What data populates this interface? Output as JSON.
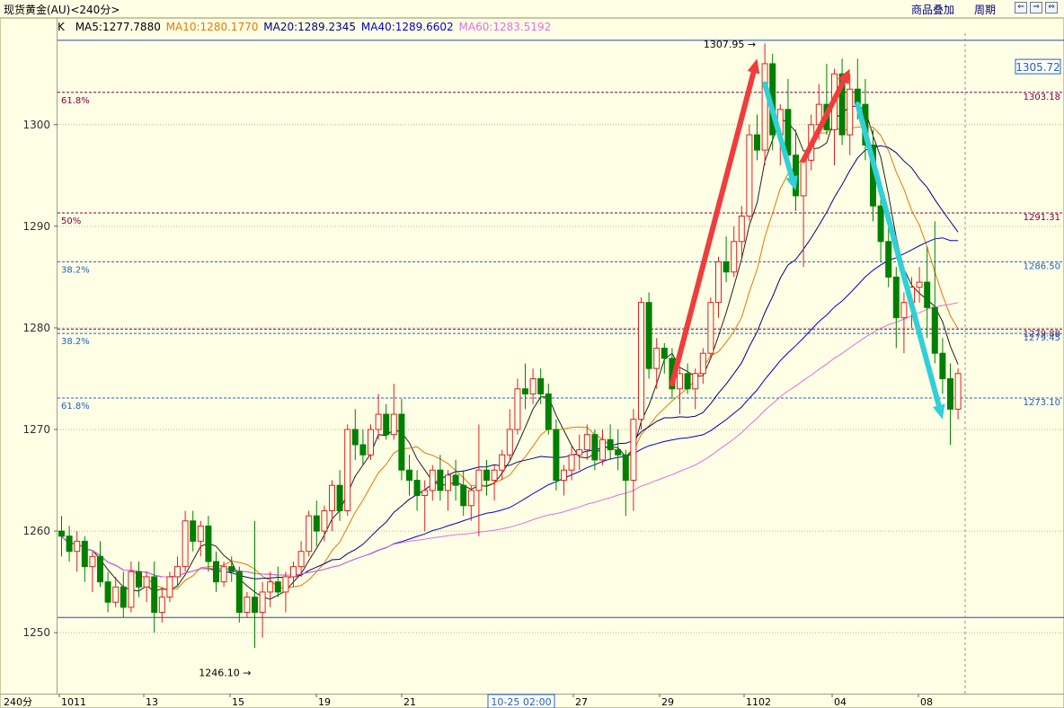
{
  "header": {
    "title": "现货黄金(AU)<240分>",
    "overlay_label": "商品叠加",
    "period_label": "周期",
    "nav_buttons": [
      "⇐",
      "⇒",
      "⇔"
    ]
  },
  "legend": {
    "prefix": "K",
    "items": [
      {
        "text": "MA5:1277.7880",
        "color": "#000000"
      },
      {
        "text": "MA10:1280.1770",
        "color": "#E87800"
      },
      {
        "text": "MA20:1289.2345",
        "color": "#000080"
      },
      {
        "text": "MA40:1289.6602",
        "color": "#0000CC"
      },
      {
        "text": "MA60:1283.5192",
        "color": "#E070E0"
      }
    ]
  },
  "chart_data": {
    "type": "candlestick",
    "timeframe": "240分",
    "ylim": [
      1244,
      1309
    ],
    "y_ticks": [
      1250,
      1260,
      1270,
      1280,
      1290,
      1300
    ],
    "x_labels": [
      "1011",
      "13",
      "15",
      "19",
      "21",
      "27",
      "29",
      "1102",
      "04",
      "08"
    ],
    "cursor_time_label": "10-25 02:00",
    "current_price_label": "1305.72",
    "range_lines": [
      1308.3,
      1251.5
    ],
    "extreme_labels": [
      {
        "text": "1307.95",
        "price": 1307.95
      },
      {
        "text": "1246.10",
        "price": 1246.1
      }
    ],
    "fib_right_labels": [
      {
        "text": "1303.18",
        "price": 1303.18,
        "color": "#800040"
      },
      {
        "text": "1291.31",
        "price": 1291.31,
        "color": "#800040"
      },
      {
        "text": "1286.50",
        "price": 1286.5,
        "color": "#2060C0"
      },
      {
        "text": "1279.88",
        "price": 1279.88,
        "color": "#800040"
      },
      {
        "text": "1279.45",
        "price": 1279.45,
        "color": "#2060C0"
      },
      {
        "text": "1273.10",
        "price": 1273.1,
        "color": "#2060C0"
      }
    ],
    "fib_left_labels": [
      {
        "text": "61.8%",
        "price": 1303.18,
        "color": "#800040"
      },
      {
        "text": "50%",
        "price": 1291.31,
        "color": "#800040"
      },
      {
        "text": "38.2%",
        "price": 1286.5,
        "color": "#2060C0"
      },
      {
        "text": "38.2%",
        "price": 1279.45,
        "color": "#2060C0"
      },
      {
        "text": "61.8%",
        "price": 1273.1,
        "color": "#2060C0"
      }
    ],
    "candles": [
      [
        1260.0,
        1261.5,
        1257.5,
        1259.5
      ],
      [
        1259.5,
        1260.5,
        1257.0,
        1258.0
      ],
      [
        1258.0,
        1260.0,
        1256.0,
        1259.0
      ],
      [
        1259.0,
        1259.5,
        1255.0,
        1256.5
      ],
      [
        1256.5,
        1258.0,
        1254.0,
        1257.5
      ],
      [
        1257.5,
        1259.0,
        1254.5,
        1255.0
      ],
      [
        1255.0,
        1256.0,
        1252.0,
        1253.0
      ],
      [
        1253.0,
        1255.5,
        1252.5,
        1254.5
      ],
      [
        1254.5,
        1256.0,
        1251.5,
        1252.5
      ],
      [
        1252.5,
        1257.0,
        1252.0,
        1256.0
      ],
      [
        1256.0,
        1257.0,
        1253.5,
        1254.5
      ],
      [
        1254.5,
        1256.0,
        1253.0,
        1255.5
      ],
      [
        1255.5,
        1257.0,
        1250.0,
        1252.0
      ],
      [
        1252.0,
        1254.5,
        1251.0,
        1253.5
      ],
      [
        1253.5,
        1256.0,
        1253.0,
        1255.5
      ],
      [
        1255.5,
        1257.5,
        1254.5,
        1256.5
      ],
      [
        1256.5,
        1262.0,
        1256.0,
        1261.0
      ],
      [
        1261.0,
        1262.0,
        1258.0,
        1259.0
      ],
      [
        1259.0,
        1261.0,
        1257.5,
        1260.5
      ],
      [
        1260.5,
        1261.5,
        1256.0,
        1257.0
      ],
      [
        1257.0,
        1258.0,
        1254.0,
        1255.0
      ],
      [
        1255.0,
        1257.0,
        1254.5,
        1256.5
      ],
      [
        1256.5,
        1257.5,
        1255.0,
        1256.0
      ],
      [
        1256.0,
        1256.5,
        1251.0,
        1252.0
      ],
      [
        1252.0,
        1254.0,
        1251.5,
        1253.5
      ],
      [
        1253.5,
        1261.0,
        1248.5,
        1252.0
      ],
      [
        1252.0,
        1255.0,
        1249.5,
        1254.0
      ],
      [
        1254.0,
        1256.0,
        1252.5,
        1255.0
      ],
      [
        1255.0,
        1256.5,
        1253.5,
        1254.0
      ],
      [
        1254.0,
        1256.0,
        1252.0,
        1255.5
      ],
      [
        1255.5,
        1257.0,
        1254.5,
        1256.5
      ],
      [
        1256.5,
        1259.0,
        1255.5,
        1258.0
      ],
      [
        1258.0,
        1262.0,
        1257.5,
        1261.5
      ],
      [
        1261.5,
        1263.0,
        1258.5,
        1260.0
      ],
      [
        1260.0,
        1262.5,
        1259.0,
        1262.0
      ],
      [
        1262.0,
        1265.0,
        1260.0,
        1264.5
      ],
      [
        1264.5,
        1266.0,
        1261.0,
        1262.0
      ],
      [
        1262.0,
        1270.5,
        1261.5,
        1270.0
      ],
      [
        1270.0,
        1272.0,
        1267.0,
        1268.5
      ],
      [
        1268.5,
        1270.0,
        1266.5,
        1267.5
      ],
      [
        1267.5,
        1270.5,
        1267.0,
        1270.0
      ],
      [
        1270.0,
        1273.5,
        1269.0,
        1271.5
      ],
      [
        1271.5,
        1272.5,
        1269.0,
        1269.5
      ],
      [
        1269.5,
        1274.5,
        1269.0,
        1271.5
      ],
      [
        1271.5,
        1273.0,
        1265.0,
        1266.0
      ],
      [
        1266.0,
        1267.5,
        1263.5,
        1265.0
      ],
      [
        1265.0,
        1266.0,
        1262.0,
        1263.5
      ],
      [
        1263.5,
        1265.0,
        1260.0,
        1264.0
      ],
      [
        1264.0,
        1266.5,
        1263.0,
        1266.0
      ],
      [
        1266.0,
        1267.5,
        1263.0,
        1264.0
      ],
      [
        1264.0,
        1266.0,
        1262.0,
        1265.5
      ],
      [
        1265.5,
        1267.0,
        1263.0,
        1264.5
      ],
      [
        1264.5,
        1266.0,
        1261.5,
        1262.5
      ],
      [
        1262.5,
        1264.5,
        1261.0,
        1264.0
      ],
      [
        1264.0,
        1270.5,
        1259.5,
        1266.0
      ],
      [
        1266.0,
        1267.0,
        1263.5,
        1265.0
      ],
      [
        1265.0,
        1266.5,
        1263.0,
        1266.0
      ],
      [
        1266.0,
        1268.0,
        1265.0,
        1267.5
      ],
      [
        1267.5,
        1272.0,
        1267.0,
        1270.0
      ],
      [
        1270.0,
        1275.0,
        1269.5,
        1274.0
      ],
      [
        1274.0,
        1276.5,
        1272.0,
        1273.5
      ],
      [
        1273.5,
        1276.0,
        1272.5,
        1275.0
      ],
      [
        1275.0,
        1276.0,
        1272.5,
        1273.5
      ],
      [
        1273.5,
        1274.5,
        1269.5,
        1270.0
      ],
      [
        1270.0,
        1271.0,
        1264.0,
        1265.0
      ],
      [
        1265.0,
        1266.5,
        1263.5,
        1266.0
      ],
      [
        1266.0,
        1268.5,
        1265.0,
        1267.5
      ],
      [
        1267.5,
        1269.5,
        1266.0,
        1268.0
      ],
      [
        1268.0,
        1270.5,
        1267.0,
        1269.5
      ],
      [
        1269.5,
        1270.0,
        1266.0,
        1267.0
      ],
      [
        1267.0,
        1270.0,
        1266.5,
        1269.0
      ],
      [
        1269.0,
        1270.5,
        1267.0,
        1268.0
      ],
      [
        1268.0,
        1270.0,
        1266.0,
        1267.5
      ],
      [
        1267.5,
        1268.0,
        1261.5,
        1265.0
      ],
      [
        1265.0,
        1272.0,
        1262.0,
        1271.0
      ],
      [
        1271.0,
        1283.0,
        1270.0,
        1282.5
      ],
      [
        1282.5,
        1283.5,
        1275.0,
        1276.0
      ],
      [
        1276.0,
        1279.0,
        1274.0,
        1278.0
      ],
      [
        1278.0,
        1278.5,
        1275.5,
        1277.0
      ],
      [
        1277.0,
        1278.0,
        1273.0,
        1274.0
      ],
      [
        1274.0,
        1276.0,
        1271.5,
        1275.5
      ],
      [
        1275.5,
        1276.5,
        1273.5,
        1274.0
      ],
      [
        1274.0,
        1276.0,
        1272.0,
        1275.5
      ],
      [
        1275.5,
        1278.0,
        1274.5,
        1277.5
      ],
      [
        1277.5,
        1283.0,
        1277.0,
        1282.5
      ],
      [
        1282.5,
        1287.0,
        1281.0,
        1286.5
      ],
      [
        1286.5,
        1289.0,
        1284.5,
        1285.5
      ],
      [
        1285.5,
        1290.0,
        1285.0,
        1288.5
      ],
      [
        1288.5,
        1292.0,
        1287.0,
        1291.0
      ],
      [
        1291.0,
        1300.0,
        1290.5,
        1299.0
      ],
      [
        1299.0,
        1301.0,
        1296.5,
        1297.5
      ],
      [
        1297.5,
        1308.0,
        1296.0,
        1306.0
      ],
      [
        1306.0,
        1307.0,
        1297.5,
        1299.0
      ],
      [
        1299.0,
        1302.0,
        1296.0,
        1301.5
      ],
      [
        1301.5,
        1304.5,
        1296.0,
        1297.0
      ],
      [
        1297.0,
        1299.5,
        1291.5,
        1293.0
      ],
      [
        1293.0,
        1297.0,
        1286.0,
        1296.5
      ],
      [
        1296.5,
        1301.0,
        1295.5,
        1300.0
      ],
      [
        1300.0,
        1304.0,
        1298.5,
        1302.0
      ],
      [
        1302.0,
        1306.0,
        1299.0,
        1299.5
      ],
      [
        1299.5,
        1305.5,
        1296.0,
        1305.0
      ],
      [
        1305.0,
        1306.5,
        1298.0,
        1299.0
      ],
      [
        1299.0,
        1305.0,
        1297.0,
        1303.5
      ],
      [
        1303.5,
        1306.5,
        1300.5,
        1302.0
      ],
      [
        1302.0,
        1304.5,
        1296.5,
        1298.0
      ],
      [
        1298.0,
        1299.5,
        1290.5,
        1292.0
      ],
      [
        1292.0,
        1293.0,
        1286.5,
        1288.5
      ],
      [
        1288.5,
        1290.0,
        1284.0,
        1285.0
      ],
      [
        1285.0,
        1286.0,
        1278.0,
        1281.0
      ],
      [
        1281.0,
        1283.5,
        1277.5,
        1282.5
      ],
      [
        1282.5,
        1285.0,
        1280.0,
        1284.0
      ],
      [
        1284.0,
        1286.0,
        1282.5,
        1284.5
      ],
      [
        1284.5,
        1288.0,
        1279.0,
        1282.0
      ],
      [
        1282.0,
        1290.5,
        1276.5,
        1277.5
      ],
      [
        1277.5,
        1279.0,
        1273.5,
        1275.0
      ],
      [
        1275.0,
        1276.5,
        1268.5,
        1272.0
      ],
      [
        1272.0,
        1276.0,
        1271.0,
        1275.5
      ]
    ],
    "annotations": [
      {
        "type": "arrow",
        "color": "#F03C3C",
        "from": [
          79,
          1274.5
        ],
        "to": [
          90,
          1306.5
        ]
      },
      {
        "type": "arrow",
        "color": "#30D0D8",
        "from": [
          91,
          1304.0
        ],
        "to": [
          95,
          1293.5
        ]
      },
      {
        "type": "arrow",
        "color": "#F03C3C",
        "from": [
          96,
          1296.5
        ],
        "to": [
          102,
          1305.5
        ]
      },
      {
        "type": "arrow",
        "color": "#30D0D8",
        "from": [
          103,
          1302.0
        ],
        "to": [
          114,
          1271.0
        ]
      }
    ]
  }
}
